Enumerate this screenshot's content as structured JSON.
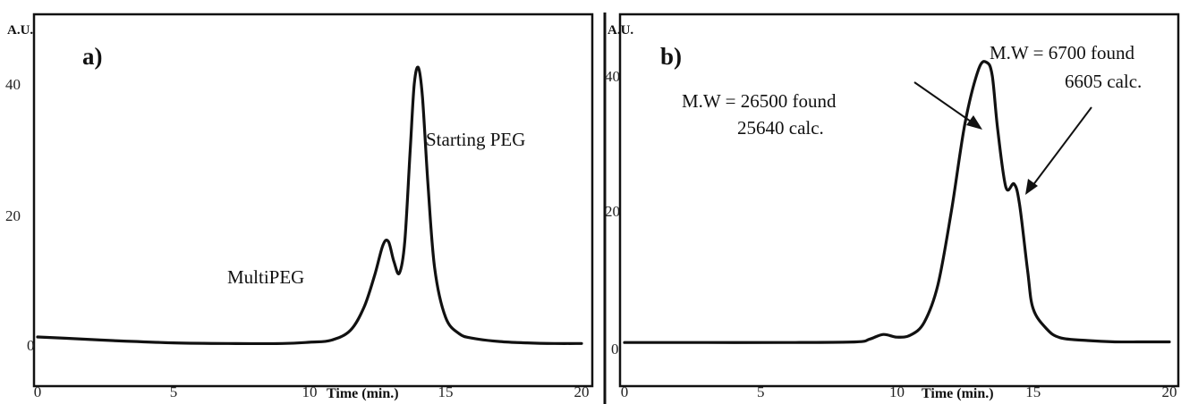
{
  "chart_data": [
    {
      "panel": "a)",
      "type": "line",
      "ylabel": "A.U.",
      "xlabel": "Time (min.)",
      "xlim": [
        0,
        20
      ],
      "ylim": [
        -3,
        48
      ],
      "xticks": [
        "0",
        "5",
        "10",
        "15",
        "20"
      ],
      "yticks": [
        "0",
        "20",
        "40"
      ],
      "grid": false,
      "series": [
        {
          "x": [
            0,
            1,
            3,
            5,
            7,
            9,
            10,
            10.8,
            11.5,
            12.0,
            12.4,
            12.7,
            12.9,
            13.1,
            13.3,
            13.5,
            13.7,
            13.85,
            14.0,
            14.15,
            14.35,
            14.6,
            15.0,
            15.5,
            16,
            17,
            18,
            19,
            20
          ],
          "y": [
            1.5,
            1.3,
            0.9,
            0.6,
            0.5,
            0.5,
            0.7,
            1.0,
            2.5,
            6.0,
            11.0,
            15.5,
            16.0,
            13.0,
            11.2,
            16.0,
            30.0,
            40.0,
            42.5,
            38.0,
            25.0,
            12.0,
            4.5,
            2.0,
            1.3,
            0.8,
            0.6,
            0.5,
            0.5
          ]
        }
      ],
      "annotations": [
        "MultiPEG",
        "Starting PEG"
      ]
    },
    {
      "panel": "b)",
      "type": "line",
      "ylabel": "A.U.",
      "xlabel": "Time (min.)",
      "xlim": [
        0,
        20
      ],
      "ylim": [
        -3,
        48
      ],
      "xticks": [
        "0",
        "5",
        "10",
        "15",
        "20"
      ],
      "yticks": [
        "0",
        "20",
        "40"
      ],
      "grid": false,
      "series": [
        {
          "x": [
            0,
            3,
            6,
            8.5,
            9.0,
            9.5,
            10.0,
            10.5,
            11.0,
            11.5,
            12.0,
            12.5,
            13.0,
            13.3,
            13.5,
            13.7,
            14.0,
            14.3,
            14.5,
            14.8,
            15.0,
            15.5,
            16,
            17,
            18,
            19,
            20
          ],
          "y": [
            0.5,
            0.5,
            0.5,
            0.6,
            1.0,
            1.7,
            1.3,
            1.6,
            3.5,
            9.0,
            20.0,
            33.0,
            41.0,
            42.0,
            40.0,
            32.0,
            23.5,
            24.0,
            21.0,
            11.0,
            5.5,
            2.5,
            1.2,
            0.8,
            0.6,
            0.6,
            0.6
          ]
        }
      ],
      "annotations": [
        "M.W = 26500 found",
        "25640 calc.",
        "M.W = 6700 found",
        "6605 calc."
      ]
    }
  ]
}
